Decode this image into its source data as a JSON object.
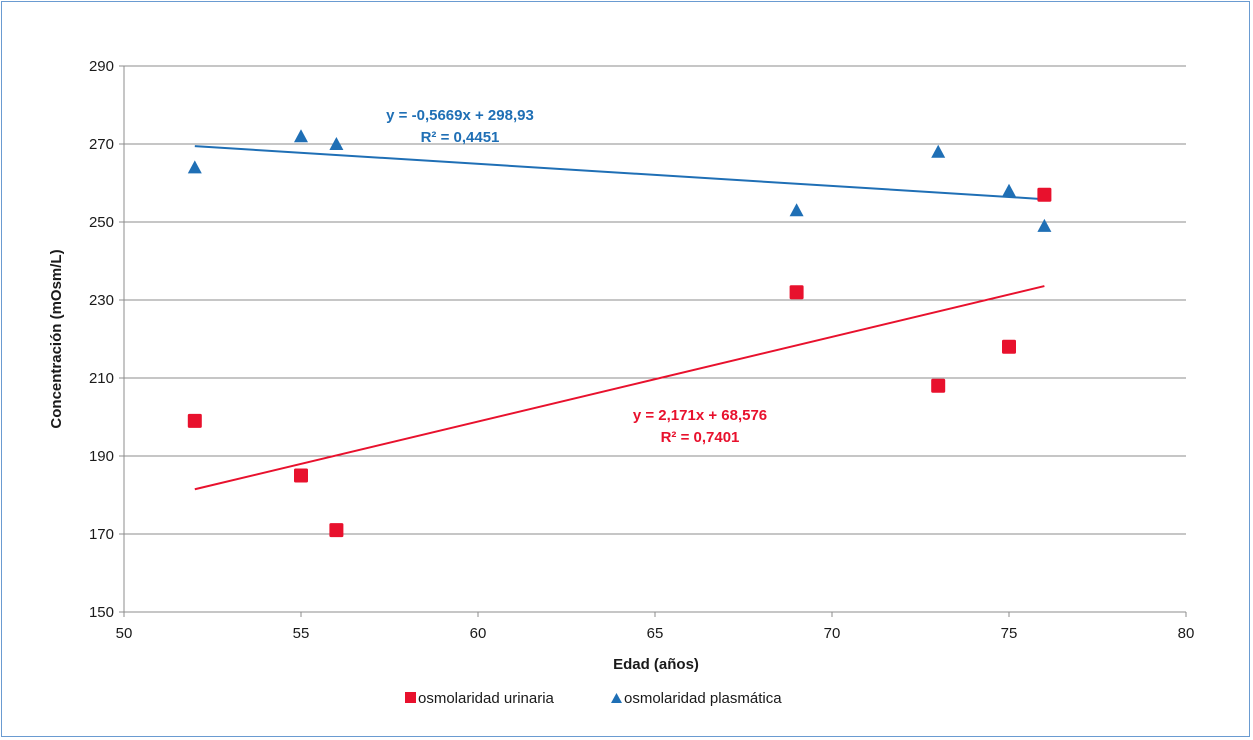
{
  "chart_data": {
    "type": "scatter",
    "xlabel": "Edad (años)",
    "ylabel": "Concentración (mOsm/L)",
    "xlim": [
      50,
      80
    ],
    "ylim": [
      150,
      290
    ],
    "x_ticks": [
      50,
      55,
      60,
      65,
      70,
      75,
      80
    ],
    "y_ticks": [
      150,
      170,
      190,
      210,
      230,
      250,
      270,
      290
    ],
    "grid": "horizontal",
    "legend_position": "bottom",
    "series": [
      {
        "name": "osmolaridad urinaria",
        "marker": "square",
        "color": "#e8112d",
        "points": [
          {
            "x": 52,
            "y": 199
          },
          {
            "x": 55,
            "y": 185
          },
          {
            "x": 56,
            "y": 171
          },
          {
            "x": 69,
            "y": 232
          },
          {
            "x": 73,
            "y": 208
          },
          {
            "x": 75,
            "y": 218
          },
          {
            "x": 76,
            "y": 257
          }
        ],
        "trendline": {
          "slope": 2.171,
          "intercept": 68.576,
          "x_range": [
            52,
            76
          ],
          "equation": "y = 2,171x + 68,576",
          "r2": "R² = 0,7401"
        }
      },
      {
        "name": "osmolaridad plasmática",
        "marker": "triangle",
        "color": "#1f6fb5",
        "points": [
          {
            "x": 52,
            "y": 264
          },
          {
            "x": 55,
            "y": 272
          },
          {
            "x": 56,
            "y": 270
          },
          {
            "x": 69,
            "y": 253
          },
          {
            "x": 73,
            "y": 268
          },
          {
            "x": 75,
            "y": 258
          },
          {
            "x": 76,
            "y": 249
          }
        ],
        "trendline": {
          "slope": -0.5669,
          "intercept": 298.93,
          "x_range": [
            52,
            76
          ],
          "equation": "y = -0,5669x + 298,93",
          "r2": "R² = 0,4451"
        }
      }
    ]
  }
}
